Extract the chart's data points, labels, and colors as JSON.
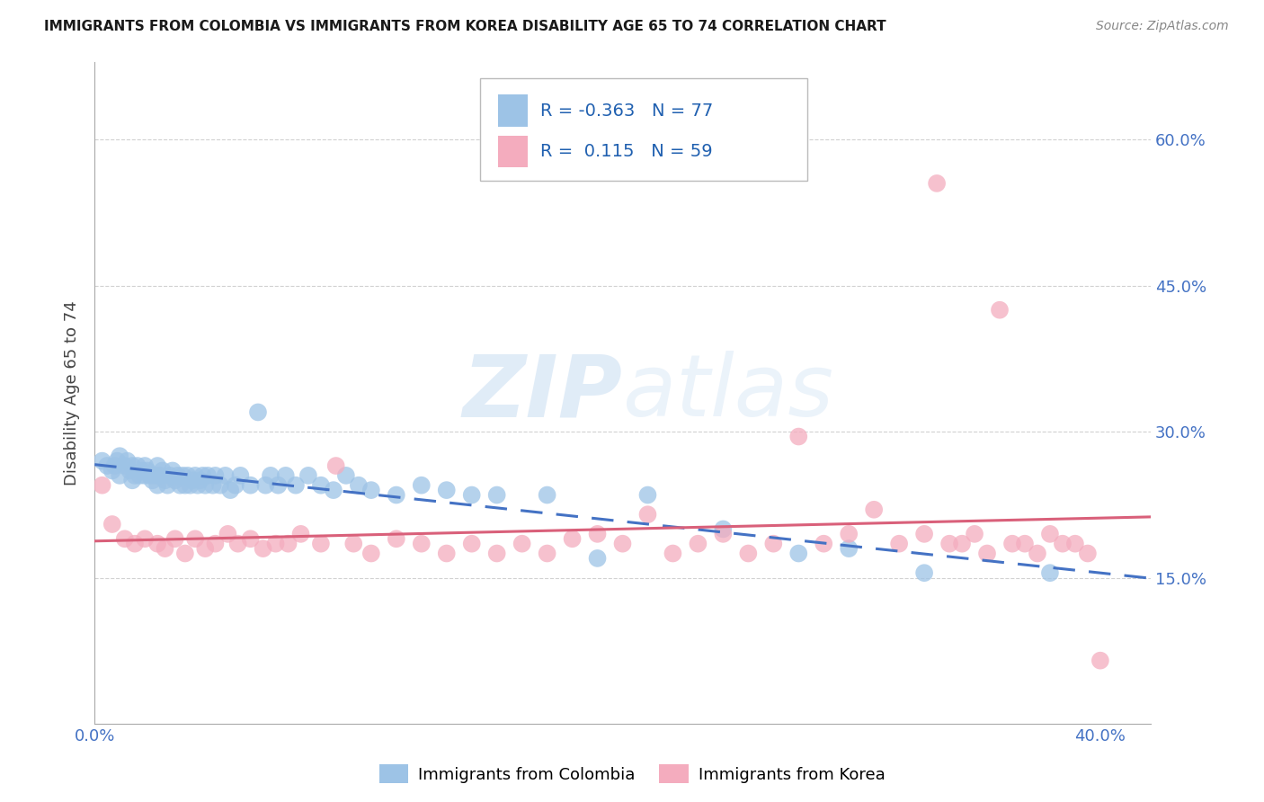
{
  "title": "IMMIGRANTS FROM COLOMBIA VS IMMIGRANTS FROM KOREA DISABILITY AGE 65 TO 74 CORRELATION CHART",
  "source": "Source: ZipAtlas.com",
  "ylabel": "Disability Age 65 to 74",
  "xlim": [
    0.0,
    0.42
  ],
  "ylim": [
    0.0,
    0.68
  ],
  "yticks": [
    0.15,
    0.3,
    0.45,
    0.6
  ],
  "ytick_labels": [
    "15.0%",
    "30.0%",
    "45.0%",
    "60.0%"
  ],
  "xticks": [
    0.0,
    0.1,
    0.2,
    0.3,
    0.4
  ],
  "xtick_labels": [
    "0.0%",
    "",
    "",
    "",
    "40.0%"
  ],
  "colombia_R": -0.363,
  "colombia_N": 77,
  "korea_R": 0.115,
  "korea_N": 59,
  "colombia_color": "#9DC3E6",
  "korea_color": "#F4ACBE",
  "colombia_line_color": "#4472C4",
  "korea_line_color": "#D9607A",
  "watermark_zip": "ZIP",
  "watermark_atlas": "atlas",
  "background_color": "#FFFFFF",
  "grid_color": "#CCCCCC",
  "tick_color": "#4472C4",
  "colombia_label": "Immigrants from Colombia",
  "korea_label": "Immigrants from Korea",
  "colombia_x": [
    0.003,
    0.005,
    0.007,
    0.008,
    0.009,
    0.01,
    0.01,
    0.012,
    0.013,
    0.014,
    0.015,
    0.015,
    0.016,
    0.017,
    0.018,
    0.019,
    0.02,
    0.02,
    0.021,
    0.022,
    0.023,
    0.024,
    0.025,
    0.025,
    0.026,
    0.027,
    0.028,
    0.029,
    0.03,
    0.031,
    0.032,
    0.033,
    0.034,
    0.035,
    0.036,
    0.037,
    0.038,
    0.039,
    0.04,
    0.041,
    0.042,
    0.043,
    0.044,
    0.045,
    0.047,
    0.048,
    0.05,
    0.052,
    0.054,
    0.056,
    0.058,
    0.062,
    0.065,
    0.068,
    0.07,
    0.073,
    0.076,
    0.08,
    0.085,
    0.09,
    0.095,
    0.1,
    0.105,
    0.11,
    0.12,
    0.13,
    0.14,
    0.15,
    0.16,
    0.18,
    0.2,
    0.22,
    0.25,
    0.28,
    0.3,
    0.33,
    0.38
  ],
  "colombia_y": [
    0.27,
    0.265,
    0.26,
    0.265,
    0.27,
    0.275,
    0.255,
    0.265,
    0.27,
    0.26,
    0.265,
    0.25,
    0.255,
    0.265,
    0.255,
    0.26,
    0.265,
    0.255,
    0.26,
    0.255,
    0.25,
    0.255,
    0.265,
    0.245,
    0.255,
    0.26,
    0.25,
    0.245,
    0.255,
    0.26,
    0.25,
    0.255,
    0.245,
    0.255,
    0.245,
    0.255,
    0.245,
    0.25,
    0.255,
    0.245,
    0.25,
    0.255,
    0.245,
    0.255,
    0.245,
    0.255,
    0.245,
    0.255,
    0.24,
    0.245,
    0.255,
    0.245,
    0.32,
    0.245,
    0.255,
    0.245,
    0.255,
    0.245,
    0.255,
    0.245,
    0.24,
    0.255,
    0.245,
    0.24,
    0.235,
    0.245,
    0.24,
    0.235,
    0.235,
    0.235,
    0.17,
    0.235,
    0.2,
    0.175,
    0.18,
    0.155,
    0.155
  ],
  "korea_x": [
    0.003,
    0.007,
    0.012,
    0.016,
    0.02,
    0.025,
    0.028,
    0.032,
    0.036,
    0.04,
    0.044,
    0.048,
    0.053,
    0.057,
    0.062,
    0.067,
    0.072,
    0.077,
    0.082,
    0.09,
    0.096,
    0.103,
    0.11,
    0.12,
    0.13,
    0.14,
    0.15,
    0.16,
    0.17,
    0.18,
    0.19,
    0.2,
    0.21,
    0.22,
    0.23,
    0.24,
    0.25,
    0.26,
    0.27,
    0.28,
    0.29,
    0.3,
    0.31,
    0.32,
    0.33,
    0.335,
    0.34,
    0.345,
    0.35,
    0.355,
    0.36,
    0.365,
    0.37,
    0.375,
    0.38,
    0.385,
    0.39,
    0.395,
    0.4
  ],
  "korea_y": [
    0.245,
    0.205,
    0.19,
    0.185,
    0.19,
    0.185,
    0.18,
    0.19,
    0.175,
    0.19,
    0.18,
    0.185,
    0.195,
    0.185,
    0.19,
    0.18,
    0.185,
    0.185,
    0.195,
    0.185,
    0.265,
    0.185,
    0.175,
    0.19,
    0.185,
    0.175,
    0.185,
    0.175,
    0.185,
    0.175,
    0.19,
    0.195,
    0.185,
    0.215,
    0.175,
    0.185,
    0.195,
    0.175,
    0.185,
    0.295,
    0.185,
    0.195,
    0.22,
    0.185,
    0.195,
    0.555,
    0.185,
    0.185,
    0.195,
    0.175,
    0.425,
    0.185,
    0.185,
    0.175,
    0.195,
    0.185,
    0.185,
    0.175,
    0.065
  ]
}
